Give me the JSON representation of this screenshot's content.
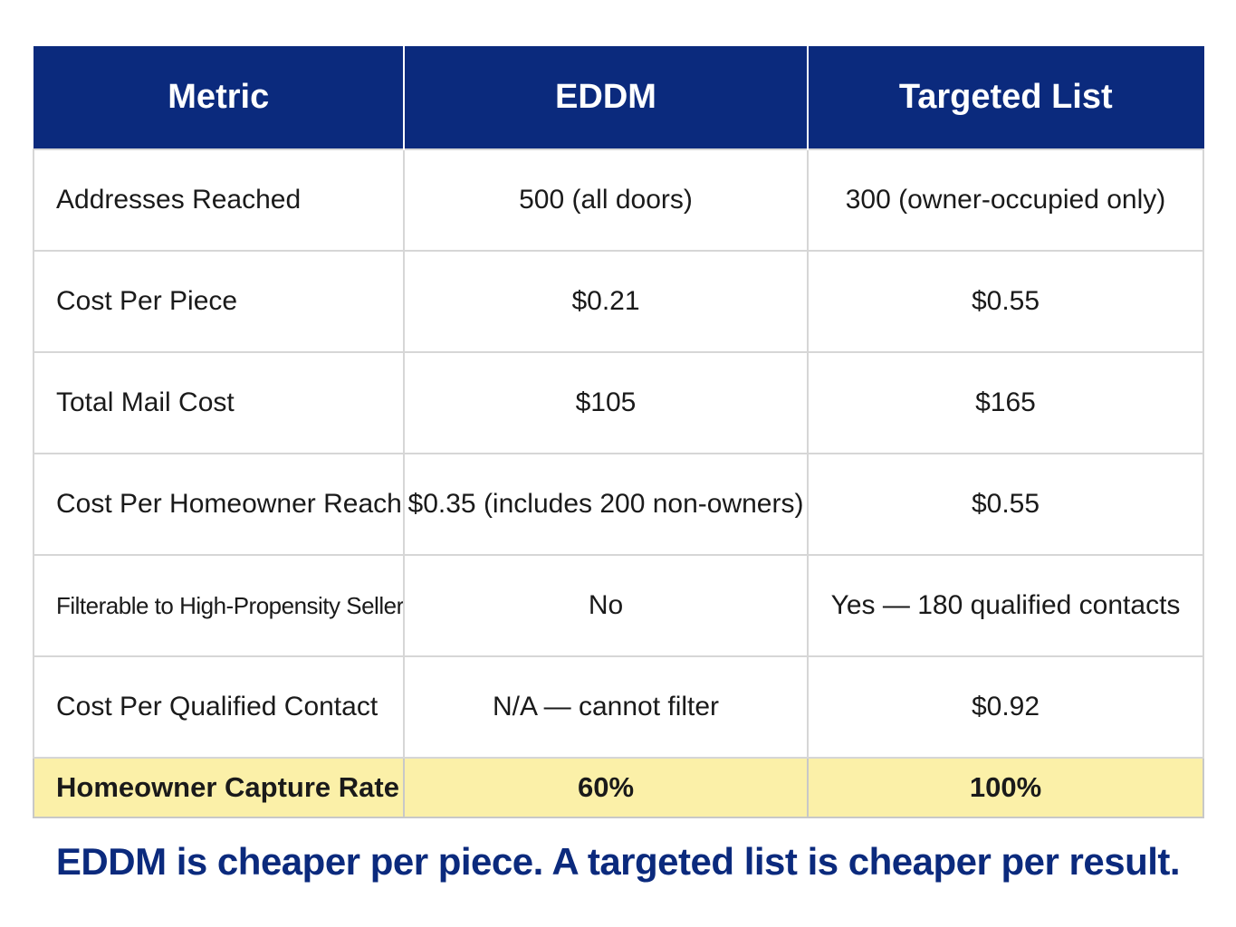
{
  "table": {
    "headers": [
      "Metric",
      "EDDM",
      "Targeted List"
    ],
    "rows": [
      [
        "Addresses Reached",
        "500 (all doors)",
        "300 (owner-occupied only)"
      ],
      [
        "Cost Per Piece",
        "$0.21",
        "$0.55"
      ],
      [
        "Total Mail Cost",
        "$105",
        "$165"
      ],
      [
        "Cost Per Homeowner Reached",
        "$0.35 (includes 200 non-owners)",
        "$0.55"
      ],
      [
        "Filterable to High-Propensity Sellers?",
        "No",
        "Yes — 180 qualified contacts"
      ],
      [
        "Cost Per Qualified Contact",
        "N/A — cannot filter",
        "$0.92"
      ]
    ],
    "highlight_row": [
      "Homeowner Capture Rate",
      "60%",
      "100%"
    ]
  },
  "footer": {
    "text": "EDDM is cheaper per piece. A targeted list is cheaper per result."
  },
  "colors": {
    "header_bg": "#0b2a7d",
    "highlight_bg": "#fbf0a8",
    "footer_text": "#0b2a7d"
  }
}
